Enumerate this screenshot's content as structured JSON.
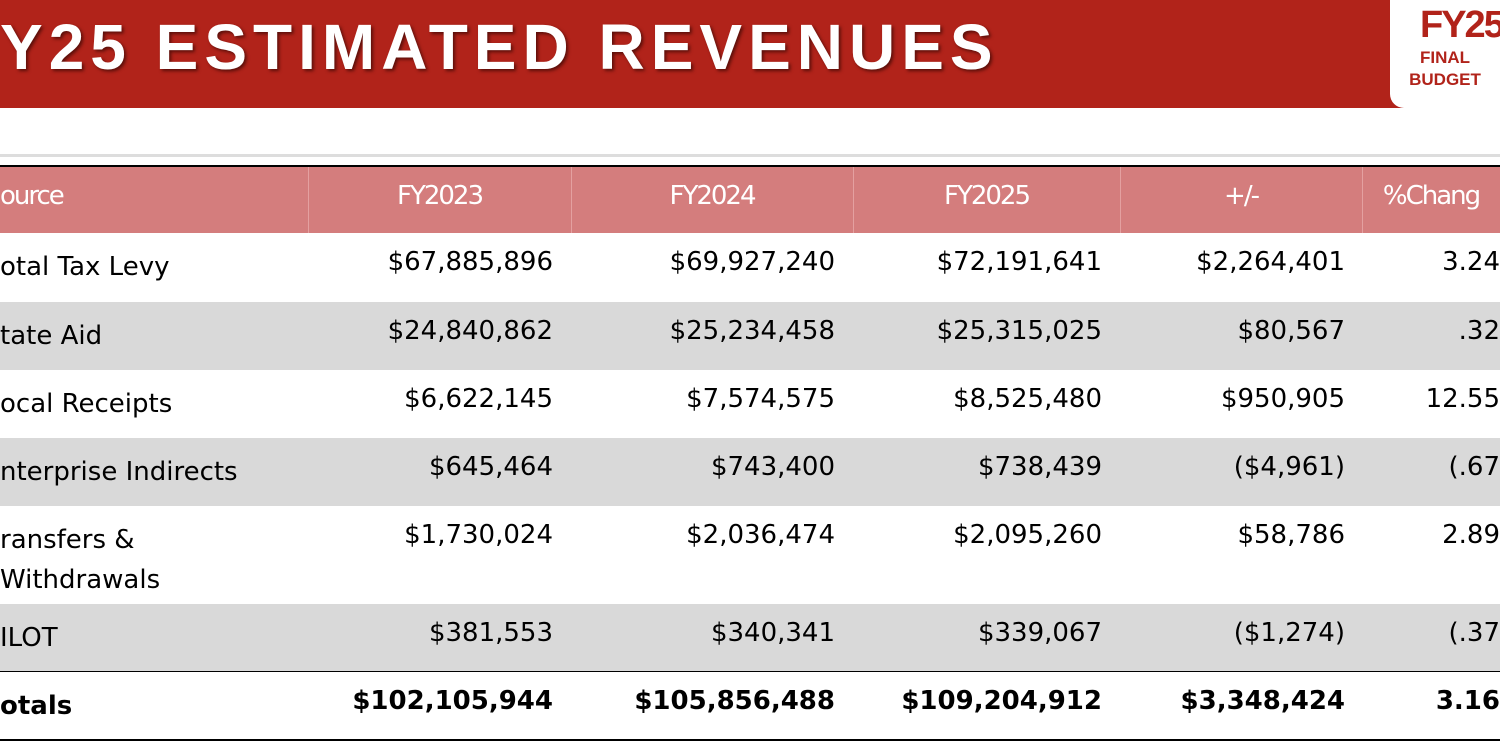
{
  "header": {
    "title": "Y25 ESTIMATED REVENUES",
    "badge": {
      "fy": "FY25",
      "line1": "FINAL",
      "line2": "BUDGET"
    }
  },
  "table": {
    "columns": [
      "ource",
      "FY2023",
      "FY2024",
      "FY2025",
      "+/-",
      "%Chang"
    ],
    "rows": [
      [
        "otal Tax Levy",
        "$67,885,896",
        "$69,927,240",
        "$72,191,641",
        "$2,264,401",
        "3.24"
      ],
      [
        "tate Aid",
        "$24,840,862",
        "$25,234,458",
        "$25,315,025",
        "$80,567",
        ".32"
      ],
      [
        "ocal Receipts",
        "$6,622,145",
        "$7,574,575",
        "$8,525,480",
        "$950,905",
        "12.55"
      ],
      [
        "nterprise Indirects",
        "$645,464",
        "$743,400",
        "$738,439",
        "($4,961)",
        "(.67"
      ],
      [
        "ransfers & Withdrawals",
        "$1,730,024",
        "$2,036,474",
        "$2,095,260",
        "$58,786",
        "2.89"
      ],
      [
        "ILOT",
        "$381,553",
        "$340,341",
        "$339,067",
        "($1,274)",
        "(.37"
      ]
    ],
    "totals": [
      "otals",
      "$102,105,944",
      "$105,856,488",
      "$109,204,912",
      "$3,348,424",
      "3.16"
    ]
  }
}
